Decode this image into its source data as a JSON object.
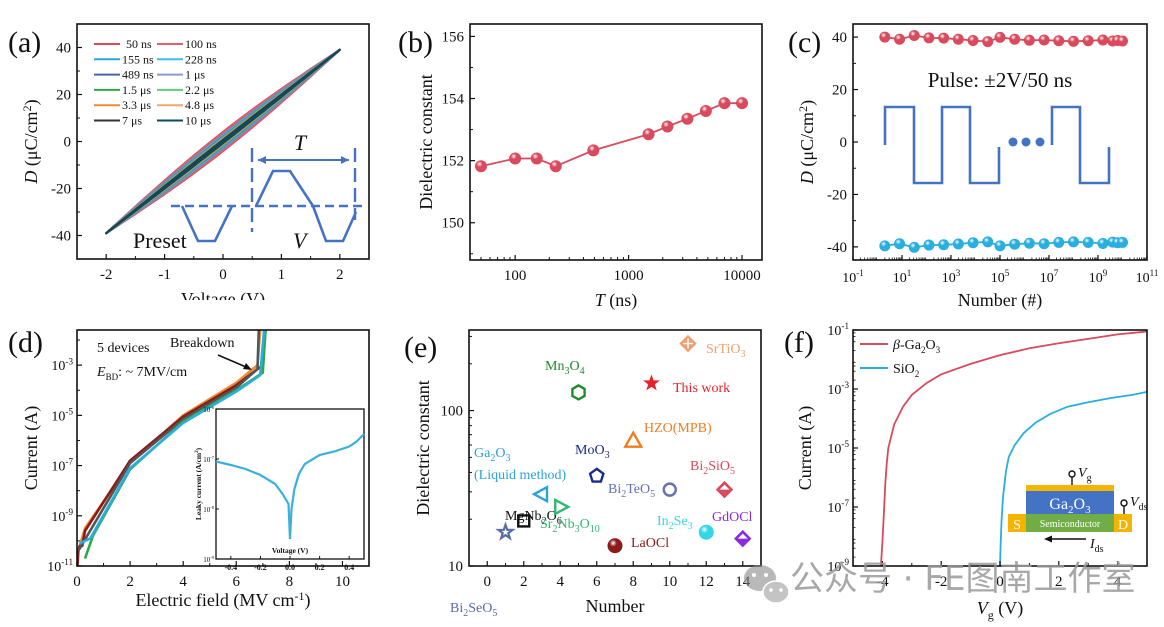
{
  "watermark": {
    "text": "公众号 · FE图南工作室",
    "icon": "wechat-icon"
  },
  "chart_data": [
    {
      "panel": "(a)",
      "type": "line",
      "xlabel": "Voltage (V)",
      "ylabel_italic": "D",
      "ylabel": " (μC/cm",
      "ylabel_sup": "2",
      "ylabel_end": ")",
      "xlim": [
        -2.5,
        2.5
      ],
      "ylim": [
        -50,
        50
      ],
      "xticks": [
        -2,
        -1,
        0,
        1,
        2
      ],
      "yticks": [
        -40,
        -20,
        0,
        20,
        40
      ],
      "legend_position": "top-left",
      "series": [
        {
          "name": "50 ns",
          "color": "#d94a5c",
          "loop_width": 4.5
        },
        {
          "name": "100 ns",
          "color": "#e06070",
          "loop_width": 4.0
        },
        {
          "name": "155 ns",
          "color": "#2aa7d8",
          "loop_width": 3.0
        },
        {
          "name": "228 ns",
          "color": "#39c0e8",
          "loop_width": 2.6
        },
        {
          "name": "489 ns",
          "color": "#4a62b0",
          "loop_width": 2.2
        },
        {
          "name": "1 μs",
          "color": "#8a9ad0",
          "loop_width": 1.9
        },
        {
          "name": "1.5 μs",
          "color": "#2ca84a",
          "loop_width": 1.6
        },
        {
          "name": "2.2 μs",
          "color": "#5fcf7a",
          "loop_width": 1.4
        },
        {
          "name": "3.3 μs",
          "color": "#f08a30",
          "loop_width": 1.2
        },
        {
          "name": "4.8 μs",
          "color": "#f4a66a",
          "loop_width": 1.0
        },
        {
          "name": "7 μs",
          "color": "#333333",
          "loop_width": 0.8
        },
        {
          "name": "10 μs",
          "color": "#0f4a5c",
          "loop_width": 0.6
        }
      ],
      "Dmax": 39,
      "inset": {
        "labels": {
          "T": "T",
          "preset": "Preset",
          "V": "V"
        },
        "color": "#4472c4"
      }
    },
    {
      "panel": "(b)",
      "type": "line",
      "xlabel_italic": "T",
      "xlabel": " (ns)",
      "ylabel": "Dielectric constant",
      "xscale": "log",
      "xlim": [
        40,
        15000
      ],
      "ylim": [
        148.8,
        156.4
      ],
      "xticks": [
        100,
        1000,
        10000
      ],
      "xticklabels": [
        "100",
        "1000",
        "10000"
      ],
      "yticks": [
        150,
        152,
        154,
        156
      ],
      "x": [
        50,
        100,
        155,
        228,
        489,
        1500,
        2200,
        3300,
        4800,
        7000,
        10000
      ],
      "y": [
        151.82,
        152.07,
        152.07,
        151.82,
        152.33,
        152.85,
        153.1,
        153.35,
        153.6,
        153.85,
        153.85
      ],
      "color": "#d94a5c"
    },
    {
      "panel": "(c)",
      "type": "line",
      "xlabel": "Number (#)",
      "ylabel_italic": "D",
      "ylabel": " (μC/cm",
      "ylabel_sup": "2",
      "ylabel_end": ")",
      "xscale": "log",
      "xlim": [
        0.1,
        100000000000.0
      ],
      "ylim": [
        -45,
        45
      ],
      "xticks_exp": [
        -1,
        1,
        3,
        5,
        7,
        9,
        11
      ],
      "yticks": [
        -40,
        -20,
        0,
        20,
        40
      ],
      "annotation": "Pulse: ±2V/50 ns",
      "series": [
        {
          "name": "positive",
          "color": "#d94a5c",
          "x_exp": [
            0.3,
            0.9,
            1.5,
            2.1,
            2.7,
            3.3,
            3.9,
            4.5,
            5.0,
            5.6,
            6.2,
            6.8,
            7.4,
            8.0,
            8.6,
            9.2,
            9.6,
            9.8,
            10.0
          ],
          "y": [
            40,
            39.2,
            40.6,
            39.7,
            39.6,
            39.2,
            38.7,
            38.3,
            39.9,
            39.2,
            38.8,
            38.9,
            38.6,
            38.4,
            38.6,
            38.9,
            38.5,
            38.7,
            38.5
          ]
        },
        {
          "name": "negative",
          "color": "#29aee0",
          "x_exp": [
            0.3,
            0.9,
            1.5,
            2.1,
            2.7,
            3.3,
            3.9,
            4.5,
            5.0,
            5.6,
            6.2,
            6.8,
            7.4,
            8.0,
            8.6,
            9.2,
            9.6,
            9.8,
            10.0
          ],
          "y": [
            -39.6,
            -38.8,
            -40.2,
            -39.3,
            -39.2,
            -38.9,
            -38.4,
            -38.1,
            -39.6,
            -39.0,
            -38.6,
            -38.8,
            -38.3,
            -38.1,
            -38.3,
            -38.7,
            -38.2,
            -38.4,
            -38.3
          ]
        }
      ],
      "inset": {
        "color": "#4472c4"
      }
    },
    {
      "panel": "(d)",
      "type": "line",
      "xlabel": "Electric field (MV cm",
      "xlabel_sup": "-1",
      "xlabel_end": ")",
      "ylabel": "Current (A)",
      "yscale": "log",
      "xlim": [
        0,
        11
      ],
      "ylim_exp": [
        -11,
        -1.6
      ],
      "xticks": [
        0,
        2,
        4,
        6,
        8,
        10
      ],
      "yticks_exp": [
        -11,
        -9,
        -7,
        -5,
        -3
      ],
      "annotations": {
        "devices": "5 devices",
        "ebd_italic": "E",
        "ebd_sub": "BD",
        "ebd_text": ": ~ 7MV/cm",
        "breakdown": "Breakdown"
      },
      "series": [
        {
          "name": "device 1",
          "color": "#f08a30",
          "x": [
            0,
            0.1,
            0.3,
            2.0,
            4.0,
            6.0,
            6.8,
            6.9
          ],
          "y_exp": [
            -10.5,
            -10.2,
            -9.5,
            -6.9,
            -5.0,
            -3.7,
            -3.0,
            -1.6
          ]
        },
        {
          "name": "device 2",
          "color": "#8b1a1a",
          "x": [
            0.02,
            0.05,
            0.1,
            0.2,
            0.3,
            2.0,
            4.0,
            6.0,
            7.0,
            7.1
          ],
          "y_exp": [
            -11,
            -10.4,
            -10.2,
            -10.2,
            -9.6,
            -6.8,
            -5.05,
            -3.8,
            -3.0,
            -1.6
          ]
        },
        {
          "name": "device 3",
          "color": "#555555",
          "x": [
            0.05,
            2.0,
            4.0,
            6.0,
            6.8,
            6.85
          ],
          "y_exp": [
            -10.4,
            -6.9,
            -5.15,
            -3.9,
            -3.15,
            -1.6
          ]
        },
        {
          "name": "device 4",
          "color": "#2ca84a",
          "x": [
            0.3,
            0.6,
            2.0,
            4.0,
            6.0,
            7.0,
            7.1
          ],
          "y_exp": [
            -10.7,
            -9.8,
            -7.15,
            -5.25,
            -4.0,
            -3.3,
            -1.6
          ]
        },
        {
          "name": "device 5",
          "color": "#29aee0",
          "x": [
            0.1,
            0.5,
            2.0,
            4.0,
            6.0,
            6.9,
            7.05
          ],
          "y_exp": [
            -10.1,
            -9.9,
            -7.1,
            -5.3,
            -4.05,
            -3.4,
            -1.6
          ]
        }
      ],
      "inset": {
        "xlabel": "Voltage (V)",
        "ylabel": "Leaky current (A/cm",
        "ylabel_sup": "2",
        "ylabel_end": ")",
        "xlim": [
          -0.5,
          0.5
        ],
        "ylim_exp": [
          -9,
          -6
        ],
        "xticks": [
          -0.4,
          -0.2,
          0.0,
          0.2,
          0.4
        ],
        "xticklabels": [
          "-0.4",
          "-0.2",
          "0.0",
          "0.2",
          "0.4"
        ],
        "yticks_exp": [
          -9,
          -8,
          -7,
          -6
        ],
        "color": "#3ab0dd",
        "x": [
          -0.5,
          -0.4,
          -0.3,
          -0.2,
          -0.1,
          -0.05,
          -0.01,
          0.0,
          0.01,
          0.03,
          0.06,
          0.1,
          0.2,
          0.3,
          0.4,
          0.45,
          0.5
        ],
        "y_exp": [
          -7.05,
          -7.12,
          -7.2,
          -7.32,
          -7.5,
          -7.7,
          -7.9,
          -8.6,
          -8.0,
          -7.6,
          -7.3,
          -7.1,
          -6.92,
          -6.85,
          -6.75,
          -6.65,
          -6.5
        ]
      }
    },
    {
      "panel": "(e)",
      "type": "scatter",
      "xlabel": "Number",
      "ylabel": "Dielectric constant",
      "yscale": "log",
      "xlim": [
        -1,
        15
      ],
      "ylim": [
        10,
        330
      ],
      "xticks": [
        0,
        2,
        4,
        6,
        8,
        10,
        12,
        14
      ],
      "yticks": [
        10,
        100
      ],
      "points": [
        {
          "label": "Bi2SeO5",
          "main": "Bi",
          "sub1": "2",
          "mid": "SeO",
          "sub2": "5",
          "x": 1,
          "y": 16.5,
          "marker": "star-open",
          "color": "#5b6aa8"
        },
        {
          "label": "MgNb2O6",
          "main": "MgNb",
          "sub1": "2",
          "mid": "O",
          "sub2": "6",
          "x": 2,
          "y": 19.5,
          "marker": "square-open",
          "color": "#111111"
        },
        {
          "label": "Ga2O3 (Liquid method)",
          "main": "Ga",
          "sub1": "2",
          "mid": "O",
          "sub2": "3",
          "extra": "(Liquid method)",
          "x": 3,
          "y": 29,
          "marker": "triangle-left-open",
          "color": "#29a3dc"
        },
        {
          "label": "Sr2Nb3O10",
          "main": "Sr",
          "sub1": "2",
          "mid": "Nb",
          "sub2": "3",
          "tail": "O",
          "sub3": "10",
          "x": 4,
          "y": 24,
          "marker": "triangle-right-open",
          "color": "#2fb873"
        },
        {
          "label": "Mn3O4",
          "main": "Mn",
          "sub1": "3",
          "mid": "O",
          "sub2": "4",
          "x": 5,
          "y": 131,
          "marker": "hexagon-open",
          "color": "#1e8a2a"
        },
        {
          "label": "MoO3",
          "main": "MoO",
          "sub1": "3",
          "x": 6,
          "y": 38,
          "marker": "pentagon-open",
          "color": "#1a2a8c"
        },
        {
          "label": "LaOCl",
          "main": "LaOCl",
          "x": 7,
          "y": 13.5,
          "marker": "sphere",
          "color": "#8b1a1a"
        },
        {
          "label": "HZO(MPB)",
          "main": "HZO(MPB)",
          "x": 8,
          "y": 64,
          "marker": "triangle-up-open",
          "color": "#f07d20"
        },
        {
          "label": "This work",
          "main": "This work",
          "x": 9,
          "y": 150,
          "marker": "star-filled",
          "color": "#e8202a"
        },
        {
          "label": "Bi2TeO5",
          "main": "Bi",
          "sub1": "2",
          "mid": "TeO",
          "sub2": "5",
          "x": 10,
          "y": 31,
          "marker": "circle-open",
          "color": "#6470b8"
        },
        {
          "label": "SrTiO3",
          "main": "SrTiO",
          "sub1": "3",
          "x": 11,
          "y": 270,
          "marker": "diamond-cross",
          "color": "#f0a070"
        },
        {
          "label": "In2Se3",
          "main": "In",
          "sub1": "2",
          "mid": "Se",
          "sub2": "3",
          "x": 12,
          "y": 16.5,
          "marker": "sphere",
          "color": "#33d6e8"
        },
        {
          "label": "Bi2SiO5",
          "main": "Bi",
          "sub1": "2",
          "mid": "SiO",
          "sub2": "5",
          "x": 13,
          "y": 31,
          "marker": "diamond-half",
          "color": "#d94a5c"
        },
        {
          "label": "GdOCl",
          "main": "GdOCl",
          "x": 14,
          "y": 15,
          "marker": "diamond-half",
          "color": "#8a2be2"
        }
      ]
    },
    {
      "panel": "(f)",
      "type": "line",
      "xlabel_italic": "V",
      "xlabel_sub": "g",
      "xlabel": " (V)",
      "ylabel": "Current (A)",
      "yscale": "log",
      "xlim": [
        -5,
        5
      ],
      "ylim_exp": [
        -9,
        -1
      ],
      "xticks": [
        -4,
        -2,
        0,
        2,
        4
      ],
      "yticks_exp": [
        -9,
        -7,
        -5,
        -3,
        -1
      ],
      "legend_position": "top-left",
      "series": [
        {
          "name_italic": "β",
          "name": "-Ga",
          "name_sub": "2",
          "name_mid": "O",
          "name_sub2": "3",
          "color": "#d94a5c",
          "x": [
            -4.05,
            -4.0,
            -3.95,
            -3.9,
            -3.85,
            -3.8,
            -3.6,
            -3.3,
            -3.0,
            -2.5,
            -2.0,
            -1.0,
            0.0,
            1.0,
            2.0,
            3.0,
            4.0,
            5.0
          ],
          "y_exp": [
            -9,
            -8.2,
            -7.2,
            -6.2,
            -5.5,
            -5.0,
            -4.2,
            -3.6,
            -3.2,
            -2.8,
            -2.5,
            -2.15,
            -1.85,
            -1.62,
            -1.45,
            -1.3,
            -1.15,
            -1.05
          ]
        },
        {
          "name": "SiO",
          "name_sub": "2",
          "color": "#29aee0",
          "x": [
            0.0,
            0.02,
            0.05,
            0.1,
            0.2,
            0.3,
            0.5,
            0.8,
            1.2,
            1.7,
            2.3,
            3.0,
            3.8,
            4.5,
            5.0
          ],
          "y_exp": [
            -9,
            -8.3,
            -7.5,
            -6.7,
            -5.8,
            -5.3,
            -4.9,
            -4.5,
            -4.15,
            -3.85,
            -3.6,
            -3.45,
            -3.3,
            -3.2,
            -3.1
          ]
        }
      ],
      "inset": {
        "gate_label": "V",
        "gate_sub": "g",
        "ds_label": "V",
        "ds_sub": "ds",
        "ids_label": "I",
        "ids_sub": "ds",
        "oxide": "Ga",
        "oxide_sub1": "2",
        "oxide_mid": "O",
        "oxide_sub2": "3",
        "channel": "Semiconductor",
        "source": "S",
        "drain": "D",
        "colors": {
          "gate": "#f5b400",
          "oxide": "#4472c4",
          "channel": "#70ad47",
          "contacts": "#f5b400"
        }
      }
    }
  ]
}
